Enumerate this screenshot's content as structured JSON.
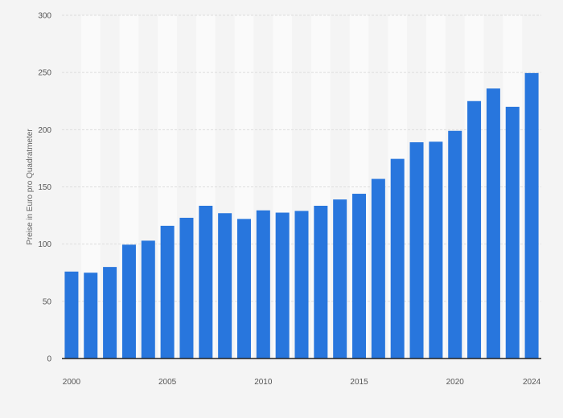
{
  "chart_data": {
    "type": "bar",
    "title": "",
    "xlabel": "",
    "ylabel": "Preise in Euro pro Quadratmeter",
    "categories": [
      "2000",
      "2001",
      "2002",
      "2003",
      "2004",
      "2005",
      "2006",
      "2007",
      "2008",
      "2009",
      "2010",
      "2011",
      "2012",
      "2013",
      "2014",
      "2015",
      "2016",
      "2017",
      "2018",
      "2019",
      "2020",
      "2021",
      "2022",
      "2023",
      "2024"
    ],
    "values": [
      76,
      75,
      80,
      99.5,
      103,
      116,
      123,
      133.5,
      127,
      122,
      129.5,
      127.5,
      129,
      133.5,
      139,
      144,
      157,
      174.5,
      189,
      189.5,
      199,
      225,
      236,
      220,
      249.5
    ],
    "ylim": [
      0,
      300
    ],
    "yticks": [
      0,
      50,
      100,
      150,
      200,
      250,
      300
    ],
    "xtick_labels": [
      "2000",
      "2005",
      "2010",
      "2015",
      "2020",
      "2024"
    ],
    "grid": true,
    "alternating_column_shading": true,
    "bar_color": "#2876dd",
    "background_color": "#f4f4f4",
    "stripe_color": "#fafafa",
    "grid_color": "#dddddd",
    "axis_color": "#222222"
  }
}
